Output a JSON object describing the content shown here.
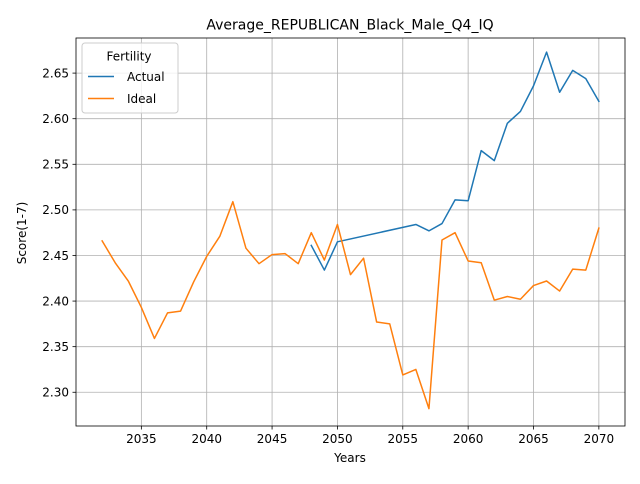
{
  "chart_data": {
    "type": "line",
    "title": "Average_REPUBLICAN_Black_Male_Q4_IQ",
    "xlabel": "Years",
    "ylabel": "Score(1-7)",
    "xlim": [
      2030,
      2072
    ],
    "ylim": [
      2.263,
      2.6885
    ],
    "grid": true,
    "legend": {
      "title": "Fertility",
      "placement": "top-left"
    },
    "x_ticks": [
      2035,
      2040,
      2045,
      2050,
      2055,
      2060,
      2065,
      2070
    ],
    "y_ticks": [
      2.3,
      2.35,
      2.4,
      2.45,
      2.5,
      2.55,
      2.6,
      2.65
    ],
    "series": [
      {
        "name": "Actual",
        "color": "#1f77b4",
        "x": [
          2048,
          2049,
          2050,
          2056,
          2057,
          2058,
          2059,
          2060,
          2061,
          2062,
          2063,
          2064,
          2065,
          2066,
          2067,
          2068,
          2069,
          2070
        ],
        "y": [
          2.461,
          2.434,
          2.465,
          2.484,
          2.477,
          2.485,
          2.511,
          2.51,
          2.565,
          2.554,
          2.595,
          2.608,
          2.636,
          2.673,
          2.629,
          2.653,
          2.644,
          2.619
        ]
      },
      {
        "name": "Ideal",
        "color": "#ff7f0e",
        "x": [
          2032,
          2033,
          2034,
          2035,
          2036,
          2037,
          2038,
          2039,
          2040,
          2041,
          2042,
          2043,
          2044,
          2045,
          2046,
          2047,
          2048,
          2049,
          2050,
          2051,
          2052,
          2053,
          2054,
          2055,
          2056,
          2057,
          2058,
          2059,
          2060,
          2061,
          2062,
          2063,
          2064,
          2065,
          2066,
          2067,
          2068,
          2069,
          2070
        ],
        "y": [
          2.466,
          2.442,
          2.422,
          2.393,
          2.359,
          2.387,
          2.389,
          2.421,
          2.449,
          2.471,
          2.509,
          2.458,
          2.441,
          2.451,
          2.452,
          2.441,
          2.475,
          2.445,
          2.484,
          2.429,
          2.447,
          2.377,
          2.375,
          2.319,
          2.325,
          2.282,
          2.467,
          2.475,
          2.444,
          2.442,
          2.401,
          2.405,
          2.402,
          2.417,
          2.422,
          2.411,
          2.435,
          2.434,
          2.48
        ]
      }
    ]
  }
}
